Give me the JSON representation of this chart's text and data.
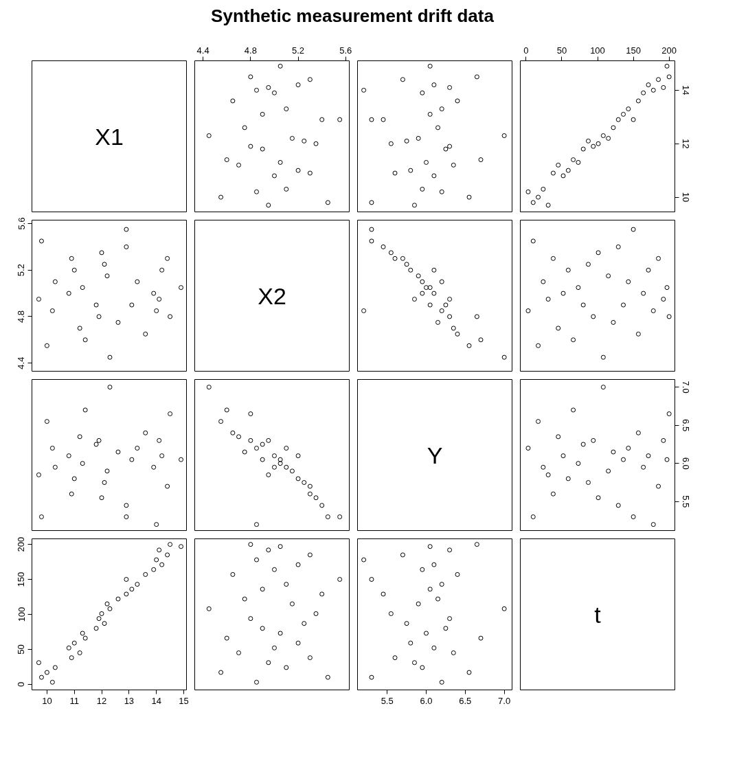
{
  "chart_data": [
    {
      "type": "other",
      "title": "Synthetic measurement drift data",
      "annotations": [
        "X1"
      ]
    },
    {
      "type": "scatter",
      "marker": "circle",
      "color": "#000000",
      "tick_labels": "x",
      "xlim": [
        4.33,
        5.63
      ],
      "ylim": [
        9.45,
        15.1
      ],
      "xticks": [
        4.4,
        4.8,
        5.2,
        5.6
      ],
      "x": [
        4.85,
        5.45,
        4.55,
        5.1,
        4.95,
        5.3,
        4.7,
        5.0,
        5.2,
        4.6,
        5.05,
        4.9,
        5.25,
        4.8,
        5.35,
        4.45,
        5.15,
        4.75,
        5.4,
        4.9,
        5.1,
        5.55,
        4.65,
        5.0,
        5.2,
        4.85,
        5.3,
        4.95,
        5.05,
        4.8
      ],
      "values": [
        10.2,
        9.8,
        10.0,
        10.3,
        9.7,
        10.9,
        11.2,
        10.8,
        11.0,
        11.4,
        11.3,
        11.8,
        12.1,
        11.9,
        12.0,
        12.3,
        12.2,
        12.6,
        12.9,
        13.1,
        13.3,
        12.9,
        13.6,
        13.9,
        14.2,
        14.0,
        14.4,
        14.1,
        14.9,
        14.5
      ]
    },
    {
      "type": "scatter",
      "marker": "circle",
      "color": "#000000",
      "tick_labels": false,
      "xlim": [
        5.12,
        7.1
      ],
      "ylim": [
        9.45,
        15.1
      ],
      "x": [
        6.2,
        5.3,
        6.55,
        5.95,
        5.85,
        5.6,
        6.35,
        6.1,
        5.8,
        6.7,
        6.0,
        6.25,
        5.75,
        6.3,
        5.55,
        7.0,
        5.9,
        6.15,
        5.45,
        6.05,
        6.2,
        5.3,
        6.4,
        5.95,
        6.1,
        5.2,
        5.7,
        6.3,
        6.05,
        6.65
      ],
      "values": [
        10.2,
        9.8,
        10.0,
        10.3,
        9.7,
        10.9,
        11.2,
        10.8,
        11.0,
        11.4,
        11.3,
        11.8,
        12.1,
        11.9,
        12.0,
        12.3,
        12.2,
        12.6,
        12.9,
        13.1,
        13.3,
        12.9,
        13.6,
        13.9,
        14.2,
        14.0,
        14.4,
        14.1,
        14.9,
        14.5
      ]
    },
    {
      "type": "scatter",
      "marker": "circle",
      "color": "#000000",
      "xlim": [
        -8,
        208
      ],
      "ylim": [
        9.45,
        15.1
      ],
      "xticks": [
        0,
        50,
        100,
        150,
        200
      ],
      "yticks": [
        10,
        12,
        14
      ],
      "x": [
        3,
        10,
        17,
        24,
        31,
        38,
        45,
        52,
        59,
        66,
        73,
        80,
        87,
        94,
        101,
        108,
        115,
        122,
        129,
        136,
        143,
        150,
        157,
        164,
        171,
        178,
        185,
        192,
        197,
        200
      ],
      "values": [
        10.2,
        9.8,
        10.0,
        10.3,
        9.7,
        10.9,
        11.2,
        10.8,
        11.0,
        11.4,
        11.3,
        11.8,
        12.1,
        11.9,
        12.0,
        12.3,
        12.2,
        12.6,
        12.9,
        13.1,
        13.3,
        12.9,
        13.6,
        13.9,
        14.2,
        14.0,
        14.4,
        14.1,
        14.9,
        14.5
      ]
    },
    {
      "type": "scatter",
      "marker": "circle",
      "color": "#000000",
      "tick_labels": "y",
      "xlim": [
        9.45,
        15.1
      ],
      "ylim": [
        4.33,
        5.63
      ],
      "yticks": [
        4.4,
        4.8,
        5.2,
        5.6
      ],
      "x": [
        10.2,
        9.8,
        10.0,
        10.3,
        9.7,
        10.9,
        11.2,
        10.8,
        11.0,
        11.4,
        11.3,
        11.8,
        12.1,
        11.9,
        12.0,
        12.3,
        12.2,
        12.6,
        12.9,
        13.1,
        13.3,
        12.9,
        13.6,
        13.9,
        14.2,
        14.0,
        14.4,
        14.1,
        14.9,
        14.5
      ],
      "values": [
        4.85,
        5.45,
        4.55,
        5.1,
        4.95,
        5.3,
        4.7,
        5.0,
        5.2,
        4.6,
        5.05,
        4.9,
        5.25,
        4.8,
        5.35,
        4.45,
        5.15,
        4.75,
        5.4,
        4.9,
        5.1,
        5.55,
        4.65,
        5.0,
        5.2,
        4.85,
        5.3,
        4.95,
        5.05,
        4.8
      ]
    },
    {
      "type": "other",
      "annotations": [
        "X2"
      ]
    },
    {
      "type": "scatter",
      "marker": "circle",
      "color": "#000000",
      "tick_labels": false,
      "xlim": [
        5.12,
        7.1
      ],
      "ylim": [
        4.33,
        5.63
      ],
      "x": [
        6.2,
        5.3,
        6.55,
        5.95,
        5.85,
        5.6,
        6.35,
        6.1,
        5.8,
        6.7,
        6.0,
        6.25,
        5.75,
        6.3,
        5.55,
        7.0,
        5.9,
        6.15,
        5.45,
        6.05,
        6.2,
        5.3,
        6.4,
        5.95,
        6.1,
        5.2,
        5.7,
        6.3,
        6.05,
        6.65
      ],
      "values": [
        4.85,
        5.45,
        4.55,
        5.1,
        4.95,
        5.3,
        4.7,
        5.0,
        5.2,
        4.6,
        5.05,
        4.9,
        5.25,
        4.8,
        5.35,
        4.45,
        5.15,
        4.75,
        5.4,
        4.9,
        5.1,
        5.55,
        4.65,
        5.0,
        5.2,
        4.85,
        5.3,
        4.95,
        5.05,
        4.8
      ]
    },
    {
      "type": "scatter",
      "marker": "circle",
      "color": "#000000",
      "tick_labels": false,
      "xlim": [
        -8,
        208
      ],
      "ylim": [
        4.33,
        5.63
      ],
      "x": [
        3,
        10,
        17,
        24,
        31,
        38,
        45,
        52,
        59,
        66,
        73,
        80,
        87,
        94,
        101,
        108,
        115,
        122,
        129,
        136,
        143,
        150,
        157,
        164,
        171,
        178,
        185,
        192,
        197,
        200
      ],
      "values": [
        4.85,
        5.45,
        4.55,
        5.1,
        4.95,
        5.3,
        4.7,
        5.0,
        5.2,
        4.6,
        5.05,
        4.9,
        5.25,
        4.8,
        5.35,
        4.45,
        5.15,
        4.75,
        5.4,
        4.9,
        5.1,
        5.55,
        4.65,
        5.0,
        5.2,
        4.85,
        5.3,
        4.95,
        5.05,
        4.8
      ]
    },
    {
      "type": "scatter",
      "marker": "circle",
      "color": "#000000",
      "tick_labels": false,
      "xlim": [
        9.45,
        15.1
      ],
      "ylim": [
        5.12,
        7.1
      ],
      "x": [
        10.2,
        9.8,
        10.0,
        10.3,
        9.7,
        10.9,
        11.2,
        10.8,
        11.0,
        11.4,
        11.3,
        11.8,
        12.1,
        11.9,
        12.0,
        12.3,
        12.2,
        12.6,
        12.9,
        13.1,
        13.3,
        12.9,
        13.6,
        13.9,
        14.2,
        14.0,
        14.4,
        14.1,
        14.9,
        14.5
      ],
      "values": [
        6.2,
        5.3,
        6.55,
        5.95,
        5.85,
        5.6,
        6.35,
        6.1,
        5.8,
        6.7,
        6.0,
        6.25,
        5.75,
        6.3,
        5.55,
        7.0,
        5.9,
        6.15,
        5.45,
        6.05,
        6.2,
        5.3,
        6.4,
        5.95,
        6.1,
        5.2,
        5.7,
        6.3,
        6.05,
        6.65
      ]
    },
    {
      "type": "scatter",
      "marker": "circle",
      "color": "#000000",
      "tick_labels": false,
      "xlim": [
        4.33,
        5.63
      ],
      "ylim": [
        5.12,
        7.1
      ],
      "x": [
        4.85,
        5.45,
        4.55,
        5.1,
        4.95,
        5.3,
        4.7,
        5.0,
        5.2,
        4.6,
        5.05,
        4.9,
        5.25,
        4.8,
        5.35,
        4.45,
        5.15,
        4.75,
        5.4,
        4.9,
        5.1,
        5.55,
        4.65,
        5.0,
        5.2,
        4.85,
        5.3,
        4.95,
        5.05,
        4.8
      ],
      "values": [
        6.2,
        5.3,
        6.55,
        5.95,
        5.85,
        5.6,
        6.35,
        6.1,
        5.8,
        6.7,
        6.0,
        6.25,
        5.75,
        6.3,
        5.55,
        7.0,
        5.9,
        6.15,
        5.45,
        6.05,
        6.2,
        5.3,
        6.4,
        5.95,
        6.1,
        5.2,
        5.7,
        6.3,
        6.05,
        6.65
      ]
    },
    {
      "type": "other",
      "annotations": [
        "Y"
      ]
    },
    {
      "type": "scatter",
      "marker": "circle",
      "color": "#000000",
      "tick_labels": "y",
      "xlim": [
        -8,
        208
      ],
      "ylim": [
        5.12,
        7.1
      ],
      "yticks": [
        5.5,
        {
          "value": 6,
          "label": "6.0"
        },
        6.5,
        {
          "value": 7,
          "label": "7.0"
        }
      ],
      "x": [
        3,
        10,
        17,
        24,
        31,
        38,
        45,
        52,
        59,
        66,
        73,
        80,
        87,
        94,
        101,
        108,
        115,
        122,
        129,
        136,
        143,
        150,
        157,
        164,
        171,
        178,
        185,
        192,
        197,
        200
      ],
      "values": [
        6.2,
        5.3,
        6.55,
        5.95,
        5.85,
        5.6,
        6.35,
        6.1,
        5.8,
        6.7,
        6.0,
        6.25,
        5.75,
        6.3,
        5.55,
        7.0,
        5.9,
        6.15,
        5.45,
        6.05,
        6.2,
        5.3,
        6.4,
        5.95,
        6.1,
        5.2,
        5.7,
        6.3,
        6.05,
        6.65
      ]
    },
    {
      "type": "scatter",
      "marker": "circle",
      "color": "#000000",
      "xlim": [
        9.45,
        15.1
      ],
      "ylim": [
        -8,
        208
      ],
      "xticks": [
        10,
        11,
        12,
        13,
        14,
        15
      ],
      "yticks": [
        0,
        50,
        100,
        150,
        200
      ],
      "x": [
        10.2,
        9.8,
        10.0,
        10.3,
        9.7,
        10.9,
        11.2,
        10.8,
        11.0,
        11.4,
        11.3,
        11.8,
        12.1,
        11.9,
        12.0,
        12.3,
        12.2,
        12.6,
        12.9,
        13.1,
        13.3,
        12.9,
        13.6,
        13.9,
        14.2,
        14.0,
        14.4,
        14.1,
        14.9,
        14.5
      ],
      "values": [
        3,
        10,
        17,
        24,
        31,
        38,
        45,
        52,
        59,
        66,
        73,
        80,
        87,
        94,
        101,
        108,
        115,
        122,
        129,
        136,
        143,
        150,
        157,
        164,
        171,
        178,
        185,
        192,
        197,
        200
      ]
    },
    {
      "type": "scatter",
      "marker": "circle",
      "color": "#000000",
      "tick_labels": false,
      "xlim": [
        4.33,
        5.63
      ],
      "ylim": [
        -8,
        208
      ],
      "x": [
        4.85,
        5.45,
        4.55,
        5.1,
        4.95,
        5.3,
        4.7,
        5.0,
        5.2,
        4.6,
        5.05,
        4.9,
        5.25,
        4.8,
        5.35,
        4.45,
        5.15,
        4.75,
        5.4,
        4.9,
        5.1,
        5.55,
        4.65,
        5.0,
        5.2,
        4.85,
        5.3,
        4.95,
        5.05,
        4.8
      ],
      "values": [
        3,
        10,
        17,
        24,
        31,
        38,
        45,
        52,
        59,
        66,
        73,
        80,
        87,
        94,
        101,
        108,
        115,
        122,
        129,
        136,
        143,
        150,
        157,
        164,
        171,
        178,
        185,
        192,
        197,
        200
      ]
    },
    {
      "type": "scatter",
      "marker": "circle",
      "color": "#000000",
      "tick_labels": "x",
      "xlim": [
        5.12,
        7.1
      ],
      "ylim": [
        -8,
        208
      ],
      "xticks": [
        5.5,
        {
          "value": 6,
          "label": "6.0"
        },
        6.5,
        {
          "value": 7,
          "label": "7.0"
        }
      ],
      "x": [
        6.2,
        5.3,
        6.55,
        5.95,
        5.85,
        5.6,
        6.35,
        6.1,
        5.8,
        6.7,
        6.0,
        6.25,
        5.75,
        6.3,
        5.55,
        7.0,
        5.9,
        6.15,
        5.45,
        6.05,
        6.2,
        5.3,
        6.4,
        5.95,
        6.1,
        5.2,
        5.7,
        6.3,
        6.05,
        6.65
      ],
      "values": [
        3,
        10,
        17,
        24,
        31,
        38,
        45,
        52,
        59,
        66,
        73,
        80,
        87,
        94,
        101,
        108,
        115,
        122,
        129,
        136,
        143,
        150,
        157,
        164,
        171,
        178,
        185,
        192,
        197,
        200
      ]
    },
    {
      "type": "other",
      "annotations": [
        "t"
      ]
    }
  ]
}
